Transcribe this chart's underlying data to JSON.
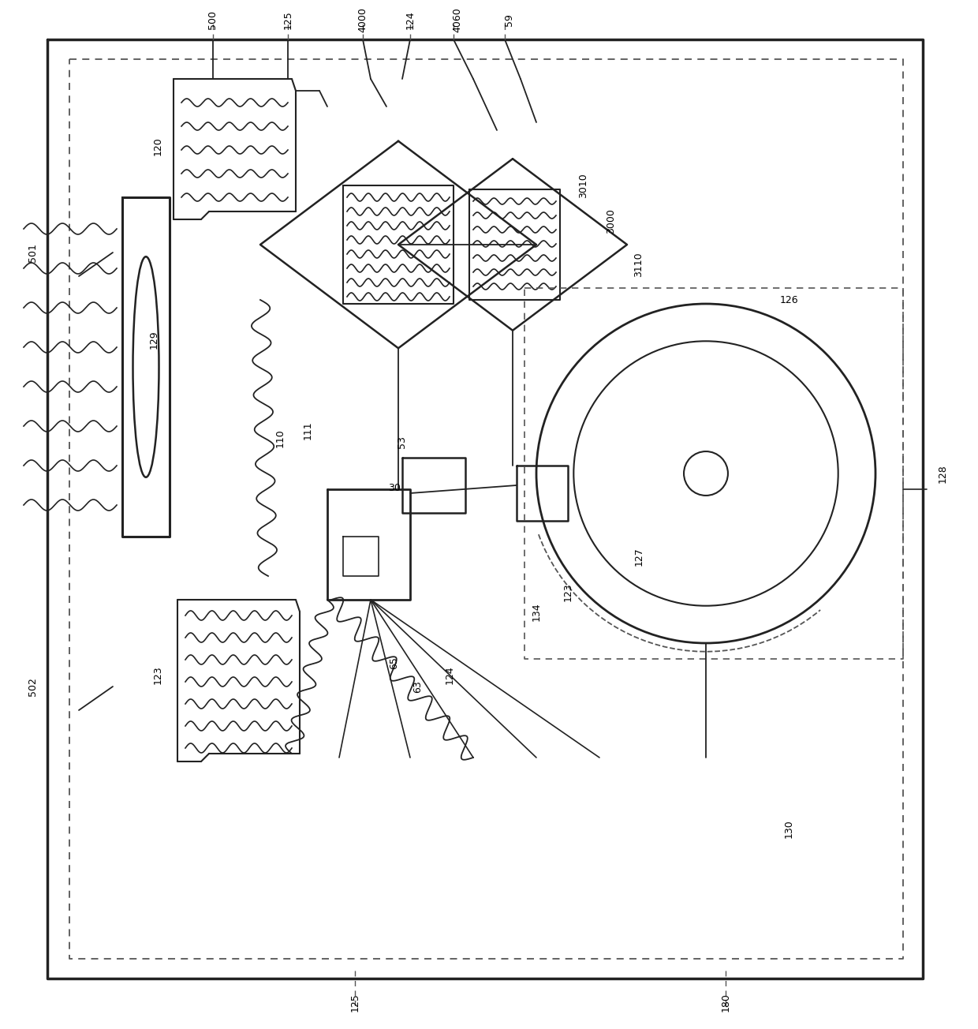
{
  "bg_color": "#ffffff",
  "lc": "#222222",
  "dc": "#555555",
  "figsize": [
    12.4,
    13.04
  ],
  "dpi": 100
}
